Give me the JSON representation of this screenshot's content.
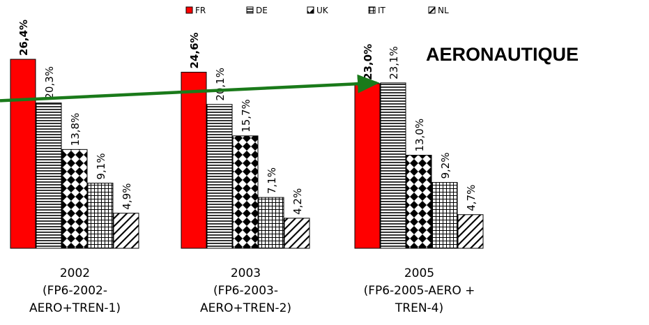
{
  "chart_data": {
    "type": "bar",
    "title": "AERONAUTIQUE",
    "legend_position": "top",
    "categories": [
      [
        "2002",
        "(FP6-2002-",
        "AERO+TREN-1)"
      ],
      [
        "2003",
        "(FP6-2003-",
        "AERO+TREN-2)"
      ],
      [
        "2005",
        "(FP6-2005-AERO +",
        "TREN-4)"
      ]
    ],
    "series": [
      {
        "name": "FR",
        "values": [
          26.4,
          24.6,
          23.0
        ],
        "labels": [
          "26,4%",
          "24,6%",
          "23,0%"
        ],
        "color": "#ff0000",
        "pattern": "solid",
        "bold_labels": true
      },
      {
        "name": "DE",
        "values": [
          20.3,
          20.1,
          23.1
        ],
        "labels": [
          "20,3%",
          "20,1%",
          "23,1%"
        ],
        "color": "#000000",
        "pattern": "horizontal-lines"
      },
      {
        "name": "UK",
        "values": [
          13.8,
          15.7,
          13.0
        ],
        "labels": [
          "13,8%",
          "15,7%",
          "13,0%"
        ],
        "color": "#000000",
        "pattern": "diamonds"
      },
      {
        "name": "IT",
        "values": [
          9.1,
          7.1,
          9.2
        ],
        "labels": [
          "9,1%",
          "7,1%",
          "9,2%"
        ],
        "color": "#000000",
        "pattern": "grid"
      },
      {
        "name": "NL",
        "values": [
          4.9,
          4.2,
          4.7
        ],
        "labels": [
          "4,9%",
          "4,2%",
          "4,7%"
        ],
        "color": "#000000",
        "pattern": "diagonal-lines"
      }
    ],
    "ylim": [
      0,
      30
    ],
    "grid": false,
    "annotation": {
      "type": "trend-arrow",
      "color": "#1a7a1a",
      "from_value": 21.0,
      "to_value": 23.0
    }
  }
}
